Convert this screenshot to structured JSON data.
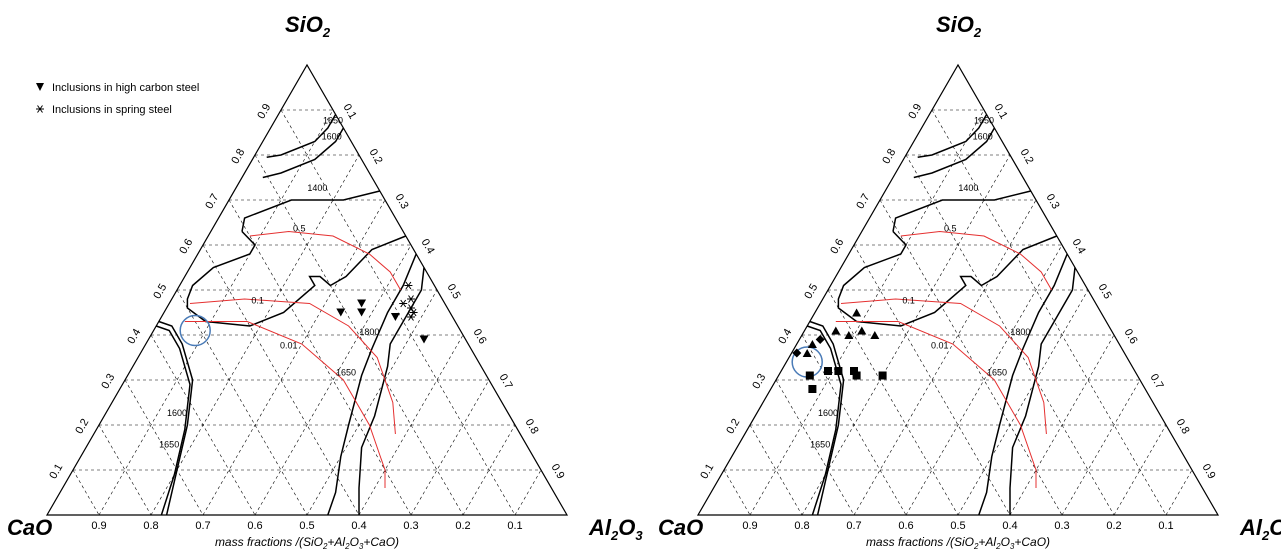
{
  "chart_data": [
    {
      "type": "scatter",
      "vertex_labels": {
        "top": "SiO",
        "top_sub": "2",
        "left": "CaO",
        "right": "Al",
        "right_sub1": "2",
        "right_mid": "O",
        "right_sub2": "3"
      },
      "xlabel": {
        "a": "mass fractions /(SiO",
        "b": "2",
        "c": "+Al",
        "d": "2",
        "e": "O",
        "f": "3",
        "g": "+CaO)"
      },
      "tick_labels": [
        "0.1",
        "0.2",
        "0.3",
        "0.4",
        "0.5",
        "0.6",
        "0.7",
        "0.8",
        "0.9"
      ],
      "grid": true,
      "legend": [
        {
          "label": "Inclusions in high carbon steel",
          "marker": "triangle-down"
        },
        {
          "label": "Inclusions in spring steel",
          "marker": "asterisk"
        }
      ],
      "isotherm_labels": [
        "1650",
        "1600",
        "1400",
        "1800",
        "1650",
        "1600",
        "1650"
      ],
      "activity_labels": [
        "0.5",
        "0.1",
        "0.01"
      ],
      "series": [
        {
          "marker": "triangle-down",
          "points": [
            {
              "SiO2": 0.45,
              "Al2O3": 0.38,
              "CaO": 0.17
            },
            {
              "SiO2": 0.45,
              "Al2O3": 0.34,
              "CaO": 0.21
            },
            {
              "SiO2": 0.47,
              "Al2O3": 0.37,
              "CaO": 0.16
            },
            {
              "SiO2": 0.44,
              "Al2O3": 0.45,
              "CaO": 0.11
            },
            {
              "SiO2": 0.39,
              "Al2O3": 0.53,
              "CaO": 0.08
            }
          ]
        },
        {
          "marker": "asterisk",
          "points": [
            {
              "SiO2": 0.51,
              "Al2O3": 0.44,
              "CaO": 0.05
            },
            {
              "SiO2": 0.48,
              "Al2O3": 0.46,
              "CaO": 0.06
            },
            {
              "SiO2": 0.47,
              "Al2O3": 0.45,
              "CaO": 0.08
            },
            {
              "SiO2": 0.46,
              "Al2O3": 0.47,
              "CaO": 0.07
            },
            {
              "SiO2": 0.45,
              "Al2O3": 0.48,
              "CaO": 0.07
            },
            {
              "SiO2": 0.44,
              "Al2O3": 0.48,
              "CaO": 0.08
            }
          ]
        }
      ],
      "highlight": {
        "SiO2": 0.41,
        "Al2O3": 0.08,
        "CaO": 0.51
      }
    },
    {
      "type": "scatter",
      "vertex_labels": {
        "top": "SiO",
        "top_sub": "2",
        "left": "CaO",
        "right": "Al",
        "right_sub1": "2",
        "right_mid": "O",
        "right_sub2": "3"
      },
      "xlabel": {
        "a": "mass fractions /(SiO",
        "b": "2",
        "c": "+Al",
        "d": "2",
        "e": "O",
        "f": "3",
        "g": "+CaO)"
      },
      "tick_labels": [
        "0.1",
        "0.2",
        "0.3",
        "0.4",
        "0.5",
        "0.6",
        "0.7",
        "0.8",
        "0.9"
      ],
      "grid": true,
      "isotherm_labels": [
        "1650",
        "1600",
        "1400",
        "1800",
        "1650",
        "1600",
        "1650"
      ],
      "activity_labels": [
        "0.5",
        "0.1",
        "0.01"
      ],
      "series": [
        {
          "marker": "triangle-up",
          "points": [
            {
              "SiO2": 0.45,
              "Al2O3": 0.08,
              "CaO": 0.47
            },
            {
              "SiO2": 0.41,
              "Al2O3": 0.06,
              "CaO": 0.53
            },
            {
              "SiO2": 0.4,
              "Al2O3": 0.09,
              "CaO": 0.51
            },
            {
              "SiO2": 0.41,
              "Al2O3": 0.11,
              "CaO": 0.48
            },
            {
              "SiO2": 0.4,
              "Al2O3": 0.14,
              "CaO": 0.46
            },
            {
              "SiO2": 0.38,
              "Al2O3": 0.03,
              "CaO": 0.59
            },
            {
              "SiO2": 0.36,
              "Al2O3": 0.03,
              "CaO": 0.61
            }
          ]
        },
        {
          "marker": "diamond",
          "points": [
            {
              "SiO2": 0.36,
              "Al2O3": 0.01,
              "CaO": 0.63
            },
            {
              "SiO2": 0.39,
              "Al2O3": 0.04,
              "CaO": 0.57
            }
          ]
        },
        {
          "marker": "square",
          "points": [
            {
              "SiO2": 0.31,
              "Al2O3": 0.06,
              "CaO": 0.63
            },
            {
              "SiO2": 0.32,
              "Al2O3": 0.09,
              "CaO": 0.59
            },
            {
              "SiO2": 0.32,
              "Al2O3": 0.11,
              "CaO": 0.57
            },
            {
              "SiO2": 0.32,
              "Al2O3": 0.14,
              "CaO": 0.54
            },
            {
              "SiO2": 0.31,
              "Al2O3": 0.15,
              "CaO": 0.54
            },
            {
              "SiO2": 0.31,
              "Al2O3": 0.2,
              "CaO": 0.49
            },
            {
              "SiO2": 0.28,
              "Al2O3": 0.08,
              "CaO": 0.64
            }
          ]
        }
      ],
      "highlight": {
        "SiO2": 0.34,
        "Al2O3": 0.04,
        "CaO": 0.62
      }
    }
  ]
}
